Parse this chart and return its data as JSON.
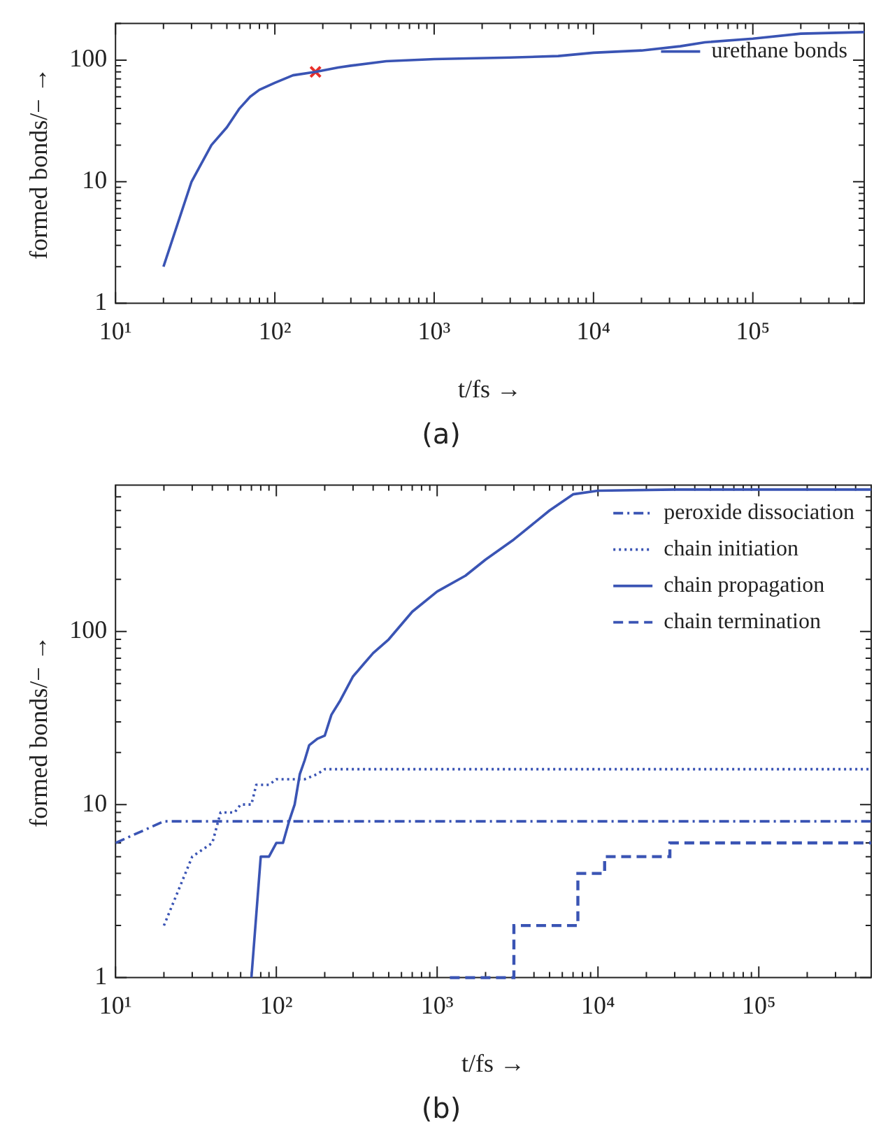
{
  "chart_data": [
    {
      "type": "line",
      "title": "(a)",
      "xlabel": "t/fs →",
      "ylabel": "formed bonds/− →",
      "log": "xy",
      "legend": "top right",
      "grid": false,
      "marker": "none",
      "xlim": [
        10,
        500000
      ],
      "ylim": [
        1,
        200
      ],
      "xticks": [
        {
          "value": 10,
          "label": "10¹"
        },
        {
          "value": 20,
          "label": null
        },
        {
          "value": 30,
          "label": null
        },
        {
          "value": 40,
          "label": null
        },
        {
          "value": 50,
          "label": null
        },
        {
          "value": 60,
          "label": null
        },
        {
          "value": 70,
          "label": null
        },
        {
          "value": 80,
          "label": null
        },
        {
          "value": 90,
          "label": null
        },
        {
          "value": 100,
          "label": "10²"
        },
        {
          "value": 200,
          "label": null
        },
        {
          "value": 300,
          "label": null
        },
        {
          "value": 400,
          "label": null
        },
        {
          "value": 500,
          "label": null
        },
        {
          "value": 600,
          "label": null
        },
        {
          "value": 700,
          "label": null
        },
        {
          "value": 800,
          "label": null
        },
        {
          "value": 900,
          "label": null
        },
        {
          "value": 1000,
          "label": "10³"
        },
        {
          "value": 2000,
          "label": null
        },
        {
          "value": 3000,
          "label": null
        },
        {
          "value": 4000,
          "label": null
        },
        {
          "value": 5000,
          "label": null
        },
        {
          "value": 6000,
          "label": null
        },
        {
          "value": 7000,
          "label": null
        },
        {
          "value": 8000,
          "label": null
        },
        {
          "value": 9000,
          "label": null
        },
        {
          "value": 10000,
          "label": "10⁴"
        },
        {
          "value": 20000,
          "label": null
        },
        {
          "value": 30000,
          "label": null
        },
        {
          "value": 40000,
          "label": null
        },
        {
          "value": 50000,
          "label": null
        },
        {
          "value": 60000,
          "label": null
        },
        {
          "value": 70000,
          "label": null
        },
        {
          "value": 80000,
          "label": null
        },
        {
          "value": 90000,
          "label": null
        },
        {
          "value": 100000,
          "label": "10⁵"
        },
        {
          "value": 200000,
          "label": null
        },
        {
          "value": 300000,
          "label": null
        },
        {
          "value": 400000,
          "label": null
        }
      ],
      "yticks": [
        1,
        {
          "value": 2,
          "label": null
        },
        {
          "value": 3,
          "label": null
        },
        {
          "value": 4,
          "label": null
        },
        {
          "value": 5,
          "label": null
        },
        {
          "value": 6,
          "label": null
        },
        {
          "value": 7,
          "label": null
        },
        {
          "value": 8,
          "label": null
        },
        {
          "value": 9,
          "label": null
        },
        10,
        {
          "value": 20,
          "label": null
        },
        {
          "value": 30,
          "label": null
        },
        {
          "value": 40,
          "label": null
        },
        {
          "value": 50,
          "label": null
        },
        {
          "value": 60,
          "label": null
        },
        {
          "value": 70,
          "label": null
        },
        {
          "value": 80,
          "label": null
        },
        {
          "value": 90,
          "label": null
        },
        100,
        {
          "value": 200,
          "label": null
        }
      ],
      "series": [
        {
          "name": "urethane bonds",
          "color": "#3a54b4",
          "line_style": "solid",
          "x": [
            20,
            30,
            40,
            50,
            60,
            70,
            80,
            100,
            130,
            180,
            250,
            300,
            500,
            1000,
            3000,
            6000,
            10000,
            20000,
            35000,
            50000,
            100000,
            200000,
            500000
          ],
          "values": [
            2,
            10,
            20,
            28,
            40,
            50,
            57,
            65,
            75,
            80,
            87,
            90,
            98,
            102,
            105,
            108,
            115,
            120,
            130,
            140,
            150,
            165,
            170
          ]
        },
        {
          "type": "scatter",
          "marker": "cross",
          "color": "#e8302a",
          "x": [
            180
          ],
          "values": [
            80
          ]
        }
      ]
    },
    {
      "type": "line",
      "title": "(b)",
      "xlabel": "t/fs →",
      "ylabel": "formed bonds/− →",
      "log": "xy",
      "legend": "top right",
      "grid": false,
      "marker": "none",
      "xlim": [
        10,
        500000
      ],
      "ylim": [
        1,
        700
      ],
      "xticks": [
        {
          "value": 10,
          "label": "10¹"
        },
        {
          "value": 20,
          "label": null
        },
        {
          "value": 30,
          "label": null
        },
        {
          "value": 40,
          "label": null
        },
        {
          "value": 50,
          "label": null
        },
        {
          "value": 60,
          "label": null
        },
        {
          "value": 70,
          "label": null
        },
        {
          "value": 80,
          "label": null
        },
        {
          "value": 90,
          "label": null
        },
        {
          "value": 100,
          "label": "10²"
        },
        {
          "value": 200,
          "label": null
        },
        {
          "value": 300,
          "label": null
        },
        {
          "value": 400,
          "label": null
        },
        {
          "value": 500,
          "label": null
        },
        {
          "value": 600,
          "label": null
        },
        {
          "value": 700,
          "label": null
        },
        {
          "value": 800,
          "label": null
        },
        {
          "value": 900,
          "label": null
        },
        {
          "value": 1000,
          "label": "10³"
        },
        {
          "value": 2000,
          "label": null
        },
        {
          "value": 3000,
          "label": null
        },
        {
          "value": 4000,
          "label": null
        },
        {
          "value": 5000,
          "label": null
        },
        {
          "value": 6000,
          "label": null
        },
        {
          "value": 7000,
          "label": null
        },
        {
          "value": 8000,
          "label": null
        },
        {
          "value": 9000,
          "label": null
        },
        {
          "value": 10000,
          "label": "10⁴"
        },
        {
          "value": 20000,
          "label": null
        },
        {
          "value": 30000,
          "label": null
        },
        {
          "value": 40000,
          "label": null
        },
        {
          "value": 50000,
          "label": null
        },
        {
          "value": 60000,
          "label": null
        },
        {
          "value": 70000,
          "label": null
        },
        {
          "value": 80000,
          "label": null
        },
        {
          "value": 90000,
          "label": null
        },
        {
          "value": 100000,
          "label": "10⁵"
        },
        {
          "value": 200000,
          "label": null
        },
        {
          "value": 300000,
          "label": null
        },
        {
          "value": 400000,
          "label": null
        }
      ],
      "yticks": [
        1,
        {
          "value": 2,
          "label": null
        },
        {
          "value": 3,
          "label": null
        },
        {
          "value": 4,
          "label": null
        },
        {
          "value": 5,
          "label": null
        },
        {
          "value": 6,
          "label": null
        },
        {
          "value": 7,
          "label": null
        },
        {
          "value": 8,
          "label": null
        },
        {
          "value": 9,
          "label": null
        },
        10,
        {
          "value": 20,
          "label": null
        },
        {
          "value": 30,
          "label": null
        },
        {
          "value": 40,
          "label": null
        },
        {
          "value": 50,
          "label": null
        },
        {
          "value": 60,
          "label": null
        },
        {
          "value": 70,
          "label": null
        },
        {
          "value": 80,
          "label": null
        },
        {
          "value": 90,
          "label": null
        },
        100,
        {
          "value": 200,
          "label": null
        },
        {
          "value": 300,
          "label": null
        },
        {
          "value": 400,
          "label": null
        },
        {
          "value": 500,
          "label": null
        },
        {
          "value": 600,
          "label": null
        }
      ],
      "series": [
        {
          "name": "peroxide dissociation",
          "color": "#3a54b4",
          "line_style": "dashdot",
          "x": [
            10,
            20,
            500000
          ],
          "values": [
            6,
            8,
            8
          ]
        },
        {
          "name": "chain initiation",
          "color": "#3a54b4",
          "line_style": "dotted",
          "x": [
            20,
            30,
            40,
            45,
            55,
            60,
            70,
            75,
            90,
            100,
            150,
            180,
            200,
            500000
          ],
          "values": [
            2,
            5,
            6,
            9,
            9,
            10,
            10,
            13,
            13,
            14,
            14,
            15,
            16,
            16
          ]
        },
        {
          "name": "chain propagation",
          "color": "#3a54b4",
          "line_style": "solid",
          "x": [
            70,
            80,
            90,
            100,
            110,
            120,
            130,
            140,
            150,
            160,
            180,
            200,
            220,
            250,
            300,
            350,
            400,
            500,
            700,
            1000,
            1500,
            2000,
            3000,
            5000,
            7000,
            10000,
            30000,
            500000
          ],
          "values": [
            1,
            5,
            5,
            6,
            6,
            8,
            10,
            15,
            18,
            22,
            24,
            25,
            33,
            40,
            55,
            65,
            75,
            90,
            130,
            170,
            210,
            260,
            340,
            500,
            620,
            650,
            660,
            660
          ]
        },
        {
          "name": "chain termination",
          "type": "step",
          "color": "#3a54b4",
          "line_style": "dashed",
          "x": [
            1200,
            3000,
            7500,
            11000,
            28000,
            500000
          ],
          "values": [
            1,
            2,
            4,
            5,
            6,
            6
          ]
        }
      ]
    }
  ]
}
